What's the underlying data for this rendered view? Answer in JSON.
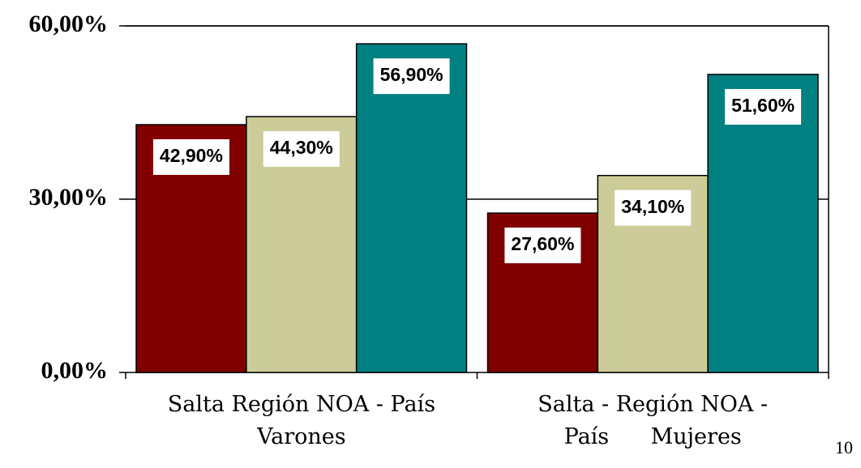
{
  "chart_data": {
    "type": "bar",
    "categories": [
      "Salta Región NOA - País\nVarones",
      "Salta - Región NOA -\nPaís      Mujeres"
    ],
    "series": [
      {
        "color": "#800000",
        "values": [
          42.9,
          27.6
        ],
        "value_labels": [
          "42,90%",
          "27,60%"
        ]
      },
      {
        "color": "#cccc99",
        "values": [
          44.3,
          34.1
        ],
        "value_labels": [
          "44,30%",
          "34,10%"
        ]
      },
      {
        "color": "#008080",
        "values": [
          56.9,
          51.6
        ],
        "value_labels": [
          "56,90%",
          "51,60%"
        ]
      }
    ],
    "ylim": [
      0,
      60
    ],
    "yticks": [
      {
        "value": 0,
        "label": "0,00%"
      },
      {
        "value": 30,
        "label": "30,00%"
      },
      {
        "value": 60,
        "label": "60,00%"
      }
    ],
    "grid": true
  },
  "page_number": "10"
}
